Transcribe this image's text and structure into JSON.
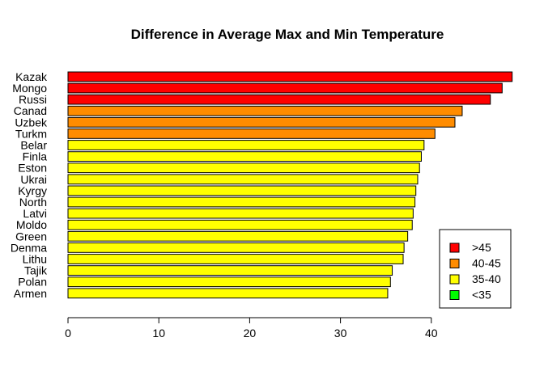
{
  "chart_data": {
    "type": "bar",
    "orientation": "horizontal",
    "title": "Difference in Average Max and Min Temperature",
    "xlabel": "",
    "ylabel": "",
    "xlim": [
      0,
      49
    ],
    "x_ticks": [
      "0",
      "10",
      "20",
      "30",
      "40"
    ],
    "grid": false,
    "categories": [
      "Kazak",
      "Mongo",
      "Russi",
      "Canad",
      "Uzbek",
      "Turkm",
      "Belar",
      "Finla",
      "Eston",
      "Ukrai",
      "Kyrgy",
      "North",
      "Latvi",
      "Moldo",
      "Green",
      "Denma",
      "Lithu",
      "Tajik",
      "Polan",
      "Armen"
    ],
    "values": [
      48.9,
      47.8,
      46.5,
      43.4,
      42.6,
      40.4,
      39.2,
      38.9,
      38.7,
      38.5,
      38.3,
      38.2,
      38.0,
      37.9,
      37.4,
      37.0,
      36.9,
      35.7,
      35.5,
      35.2
    ],
    "bins": [
      {
        "label": ">45",
        "min": 45,
        "color": "#FF0000"
      },
      {
        "label": "40-45",
        "min": 40,
        "color": "#FF8C00"
      },
      {
        "label": "35-40",
        "min": 35,
        "color": "#FFFF00"
      },
      {
        "label": "<35",
        "min": -1000,
        "color": "#00FF00"
      }
    ],
    "legend_position": "bottom-right"
  }
}
